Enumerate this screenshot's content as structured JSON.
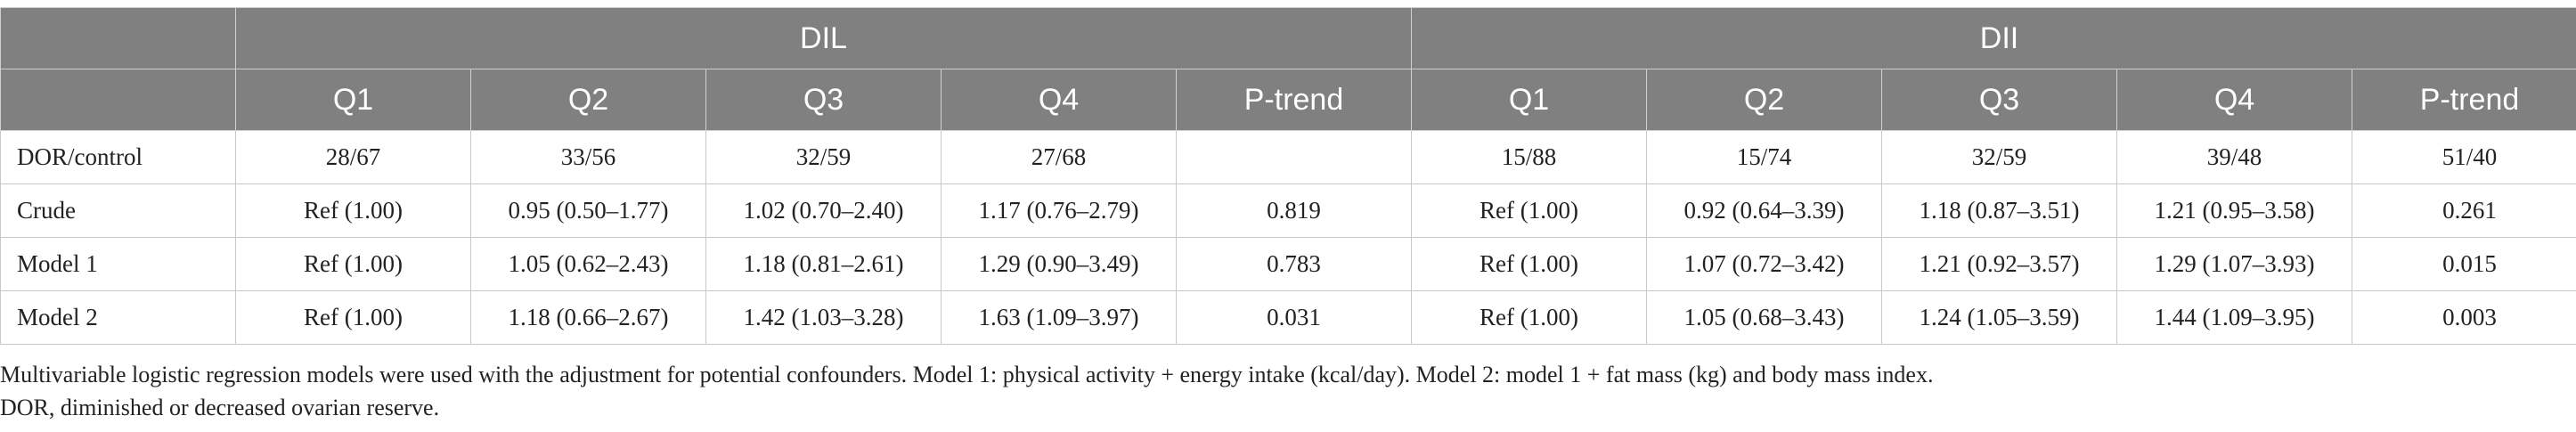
{
  "header": {
    "groups": [
      "DIL",
      "DII"
    ],
    "columns": [
      "Q1",
      "Q2",
      "Q3",
      "Q4",
      "P-trend",
      "Q1",
      "Q2",
      "Q3",
      "Q4",
      "P-trend"
    ]
  },
  "rows": [
    {
      "label": "DOR/control",
      "cells": [
        "28/67",
        "33/56",
        "32/59",
        "27/68",
        "",
        "15/88",
        "15/74",
        "32/59",
        "39/48",
        "51/40"
      ]
    },
    {
      "label": "Crude",
      "cells": [
        "Ref (1.00)",
        "0.95 (0.50–1.77)",
        "1.02 (0.70–2.40)",
        "1.17 (0.76–2.79)",
        "0.819",
        "Ref (1.00)",
        "0.92 (0.64–3.39)",
        "1.18 (0.87–3.51)",
        "1.21 (0.95–3.58)",
        "0.261"
      ]
    },
    {
      "label": "Model 1",
      "cells": [
        "Ref (1.00)",
        "1.05 (0.62–2.43)",
        "1.18 (0.81–2.61)",
        "1.29 (0.90–3.49)",
        "0.783",
        "Ref (1.00)",
        "1.07 (0.72–3.42)",
        "1.21 (0.92–3.57)",
        "1.29 (1.07–3.93)",
        "0.015"
      ]
    },
    {
      "label": "Model 2",
      "cells": [
        "Ref (1.00)",
        "1.18 (0.66–2.67)",
        "1.42 (1.03–3.28)",
        "1.63 (1.09–3.97)",
        "0.031",
        "Ref (1.00)",
        "1.05 (0.68–3.43)",
        "1.24 (1.05–3.59)",
        "1.44 (1.09–3.95)",
        "0.003"
      ]
    }
  ],
  "notes": [
    "Multivariable logistic regression models were used with the adjustment for potential confounders. Model 1: physical activity + energy intake (kcal/day). Model 2: model 1 + fat mass (kg) and body mass index.",
    "DOR, diminished or decreased ovarian reserve."
  ]
}
